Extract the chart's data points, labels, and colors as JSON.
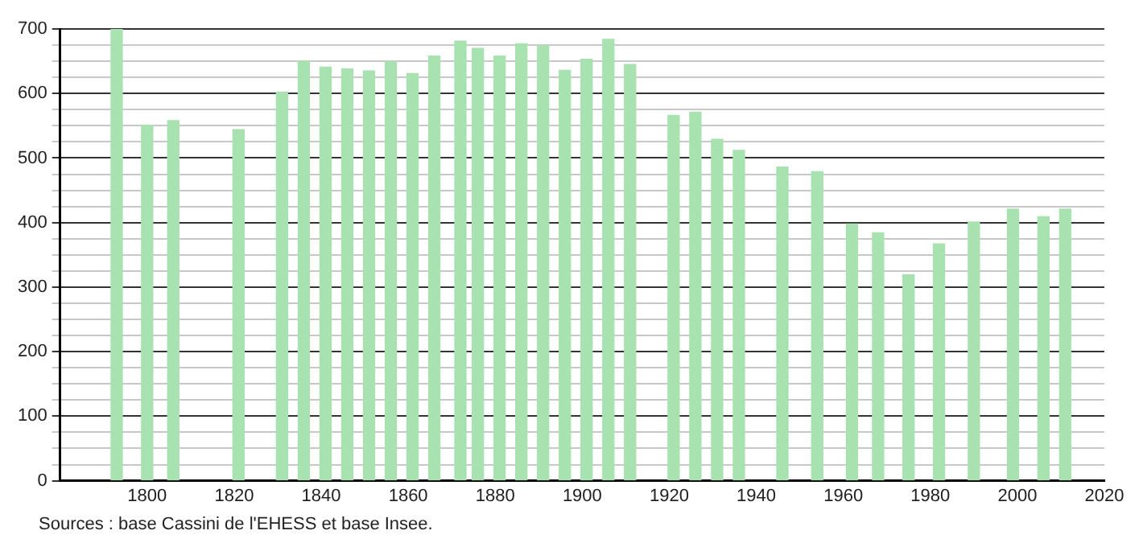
{
  "chart_data": {
    "type": "bar",
    "color": "#a8e2b0",
    "x": [
      1793,
      1800,
      1806,
      1821,
      1831,
      1836,
      1841,
      1846,
      1851,
      1856,
      1861,
      1866,
      1872,
      1876,
      1881,
      1886,
      1891,
      1896,
      1901,
      1906,
      1911,
      1921,
      1926,
      1931,
      1936,
      1946,
      1954,
      1962,
      1968,
      1975,
      1982,
      1990,
      1999,
      2006,
      2011
    ],
    "values": [
      700,
      551,
      558,
      544,
      602,
      650,
      641,
      638,
      635,
      649,
      631,
      658,
      681,
      670,
      658,
      677,
      674,
      636,
      653,
      684,
      645,
      566,
      571,
      529,
      512,
      486,
      479,
      398,
      384,
      319,
      367,
      401,
      421,
      409,
      421
    ],
    "xlim": [
      1780,
      2020
    ],
    "xticks": [
      1800,
      1820,
      1840,
      1860,
      1880,
      1900,
      1920,
      1940,
      1960,
      1980,
      2000,
      2020
    ],
    "ylim": [
      0,
      700
    ],
    "yticks": [
      0,
      {
        "value": 25,
        "label": null
      },
      {
        "value": 50,
        "label": null
      },
      {
        "value": 75,
        "label": null
      },
      100,
      {
        "value": 125,
        "label": null
      },
      {
        "value": 150,
        "label": null
      },
      {
        "value": 175,
        "label": null
      },
      200,
      {
        "value": 225,
        "label": null
      },
      {
        "value": 250,
        "label": null
      },
      {
        "value": 275,
        "label": null
      },
      300,
      {
        "value": 325,
        "label": null
      },
      {
        "value": 350,
        "label": null
      },
      {
        "value": 375,
        "label": null
      },
      400,
      {
        "value": 425,
        "label": null
      },
      {
        "value": 450,
        "label": null
      },
      {
        "value": 475,
        "label": null
      },
      500,
      {
        "value": 525,
        "label": null
      },
      {
        "value": 550,
        "label": null
      },
      {
        "value": 575,
        "label": null
      },
      600,
      {
        "value": 625,
        "label": null
      },
      {
        "value": 650,
        "label": null
      },
      {
        "value": 675,
        "label": null
      },
      700
    ],
    "grid": "y",
    "annotations": [
      "Sources : base Cassini de l'EHESS et base Insee."
    ]
  }
}
